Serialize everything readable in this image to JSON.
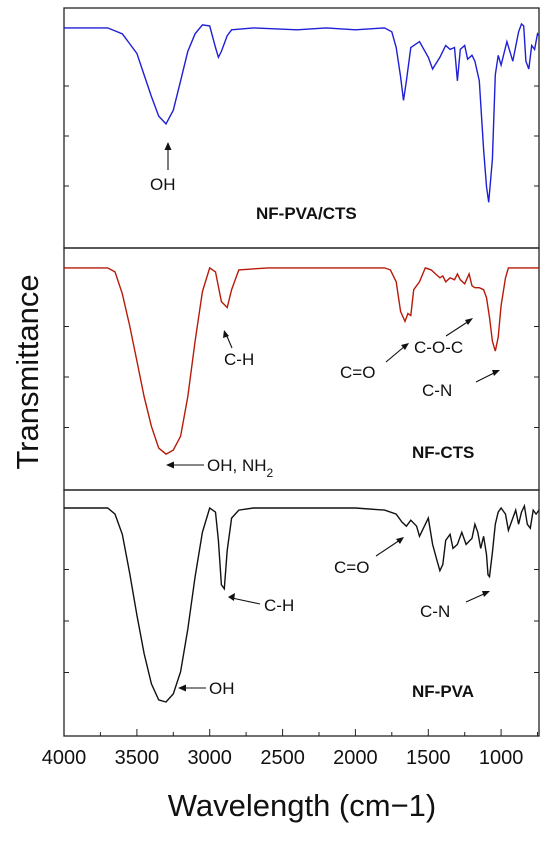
{
  "chart_data": {
    "type": "line",
    "title": "",
    "xlabel": "Wavelength (cm−1)",
    "ylabel": "Transmittance",
    "x_reversed": true,
    "xlim": [
      4000,
      740
    ],
    "xticks": [
      "4000",
      "3500",
      "3000",
      "2500",
      "2000",
      "1500",
      "1000"
    ],
    "ylim": [
      0,
      1
    ],
    "grid": false,
    "legend": "none",
    "panels": [
      {
        "name": "NF-PVA/CTS",
        "color": "#1f1fd6",
        "x": [
          4000,
          3700,
          3600,
          3500,
          3450,
          3400,
          3350,
          3300,
          3250,
          3200,
          3150,
          3100,
          3050,
          3000,
          2960,
          2940,
          2920,
          2880,
          2850,
          2700,
          2400,
          2200,
          2000,
          1800,
          1750,
          1720,
          1690,
          1670,
          1650,
          1620,
          1560,
          1500,
          1470,
          1420,
          1380,
          1350,
          1320,
          1300,
          1280,
          1250,
          1230,
          1200,
          1180,
          1150,
          1120,
          1100,
          1085,
          1060,
          1040,
          1020,
          1000,
          960,
          920,
          880,
          860,
          845,
          830,
          810,
          790,
          770,
          750,
          740
        ],
        "y": [
          0.97,
          0.97,
          0.94,
          0.84,
          0.73,
          0.62,
          0.52,
          0.48,
          0.55,
          0.7,
          0.85,
          0.94,
          0.985,
          0.98,
          0.87,
          0.82,
          0.85,
          0.93,
          0.96,
          0.97,
          0.96,
          0.97,
          0.96,
          0.97,
          0.95,
          0.87,
          0.72,
          0.6,
          0.7,
          0.87,
          0.9,
          0.82,
          0.76,
          0.82,
          0.88,
          0.86,
          0.87,
          0.7,
          0.86,
          0.88,
          0.81,
          0.83,
          0.8,
          0.7,
          0.35,
          0.16,
          0.08,
          0.3,
          0.73,
          0.83,
          0.78,
          0.9,
          0.8,
          0.95,
          0.99,
          0.98,
          0.8,
          0.76,
          0.88,
          0.86,
          0.94,
          0.93
        ]
      },
      {
        "name": "NF-CTS",
        "color": "#b81a0a",
        "x": [
          4000,
          3700,
          3650,
          3600,
          3550,
          3500,
          3450,
          3400,
          3350,
          3300,
          3250,
          3200,
          3150,
          3100,
          3050,
          3000,
          2960,
          2920,
          2880,
          2850,
          2800,
          2600,
          2200,
          1800,
          1760,
          1720,
          1690,
          1660,
          1640,
          1620,
          1600,
          1560,
          1520,
          1480,
          1450,
          1420,
          1400,
          1380,
          1350,
          1320,
          1300,
          1280,
          1250,
          1220,
          1200,
          1180,
          1150,
          1120,
          1100,
          1080,
          1060,
          1040,
          1020,
          1000,
          970,
          950,
          900,
          800,
          740
        ],
        "y": [
          0.97,
          0.97,
          0.95,
          0.84,
          0.68,
          0.5,
          0.32,
          0.17,
          0.06,
          0.03,
          0.05,
          0.12,
          0.32,
          0.6,
          0.85,
          0.97,
          0.95,
          0.8,
          0.77,
          0.86,
          0.96,
          0.97,
          0.97,
          0.97,
          0.96,
          0.9,
          0.75,
          0.7,
          0.74,
          0.73,
          0.86,
          0.9,
          0.97,
          0.96,
          0.94,
          0.92,
          0.93,
          0.9,
          0.92,
          0.91,
          0.94,
          0.91,
          0.89,
          0.94,
          0.88,
          0.87,
          0.87,
          0.86,
          0.82,
          0.72,
          0.6,
          0.55,
          0.62,
          0.78,
          0.92,
          0.97,
          0.97,
          0.97,
          0.97
        ]
      },
      {
        "name": "NF-PVA",
        "color": "#111111",
        "x": [
          4000,
          3700,
          3650,
          3600,
          3550,
          3500,
          3450,
          3400,
          3350,
          3300,
          3250,
          3200,
          3150,
          3100,
          3050,
          3000,
          2960,
          2940,
          2920,
          2900,
          2880,
          2850,
          2800,
          2700,
          2400,
          2000,
          1800,
          1720,
          1680,
          1650,
          1620,
          1580,
          1560,
          1540,
          1500,
          1470,
          1440,
          1420,
          1400,
          1380,
          1350,
          1330,
          1300,
          1270,
          1240,
          1200,
          1180,
          1160,
          1140,
          1120,
          1100,
          1090,
          1080,
          1060,
          1040,
          1020,
          1000,
          970,
          950,
          920,
          900,
          880,
          860,
          840,
          820,
          800,
          780,
          760,
          740
        ],
        "y": [
          0.98,
          0.98,
          0.95,
          0.85,
          0.66,
          0.45,
          0.26,
          0.11,
          0.03,
          0.02,
          0.06,
          0.17,
          0.38,
          0.64,
          0.86,
          0.98,
          0.96,
          0.82,
          0.6,
          0.58,
          0.77,
          0.93,
          0.97,
          0.98,
          0.98,
          0.98,
          0.97,
          0.95,
          0.91,
          0.89,
          0.92,
          0.89,
          0.84,
          0.87,
          0.93,
          0.8,
          0.72,
          0.67,
          0.7,
          0.82,
          0.85,
          0.78,
          0.8,
          0.86,
          0.8,
          0.83,
          0.9,
          0.86,
          0.78,
          0.84,
          0.75,
          0.65,
          0.64,
          0.76,
          0.9,
          0.96,
          0.98,
          0.95,
          0.87,
          0.93,
          0.97,
          0.9,
          0.96,
          0.99,
          0.9,
          0.88,
          0.97,
          0.95,
          0.97
        ]
      }
    ],
    "annotations": {
      "pvacts_oh": "OH",
      "cts_ch": "C-H",
      "cts_co": "C=O",
      "cts_coc": "C-O-C",
      "cts_cn": "C-N",
      "cts_oh_nh2": "OH, NH",
      "cts_oh_nh2_sub": "2",
      "pva_co": "C=O",
      "pva_ch": "C-H",
      "pva_cn": "C-N",
      "pva_oh": "OH"
    }
  }
}
